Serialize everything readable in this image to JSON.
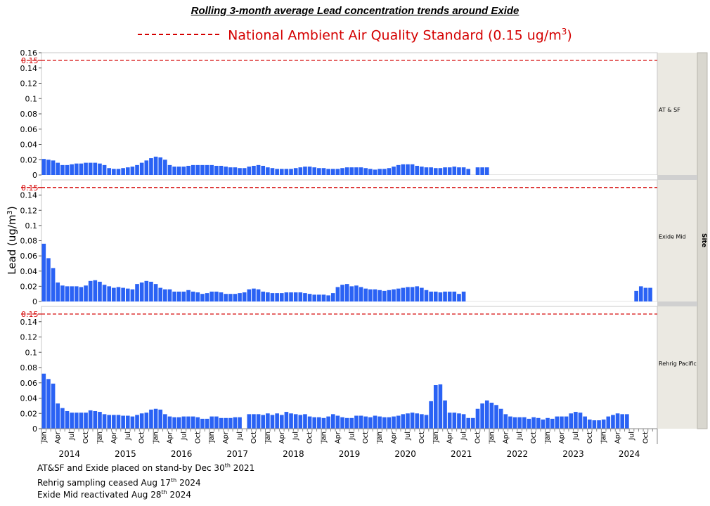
{
  "title": "Rolling 3-month average Lead concentration trends around Exide",
  "standard_legend": {
    "label": "National Ambient Air Quality Standard (0.15 ug/m",
    "sup": "3",
    "suffix": ")",
    "color": "#d40000"
  },
  "notes": [
    {
      "prefix": "AT&SF and Exide placed on stand-by Dec 30",
      "sup": "th",
      "suffix": " 2021"
    },
    {
      "prefix": "Rehrig sampling ceased Aug 17",
      "sup": "th",
      "suffix": " 2024"
    },
    {
      "prefix": "Exide Mid reactivated Aug 28",
      "sup": "th",
      "suffix": " 2024"
    }
  ],
  "chart_data": {
    "type": "bar",
    "ylabel": "Lead (ug/m3)",
    "facet_label": "Site",
    "bar_color": "#2a62f4",
    "standard_value": 0.15,
    "ylim": [
      0,
      0.16
    ],
    "yticks": [
      "0",
      "0.02",
      "0.04",
      "0.06",
      "0.08",
      "0.1",
      "0.12",
      "0.14",
      "0.16"
    ],
    "x_start": "2014-01",
    "month_tick_labels": [
      "Jan",
      "Apr",
      "Jul",
      "Oct"
    ],
    "years": [
      "2014",
      "2015",
      "2016",
      "2017",
      "2018",
      "2019",
      "2020",
      "2021",
      "2022",
      "2023",
      "2024"
    ],
    "panels": [
      {
        "site": "AT & SF",
        "values": [
          0.021,
          0.02,
          0.019,
          0.016,
          0.013,
          0.013,
          0.014,
          0.015,
          0.015,
          0.016,
          0.016,
          0.016,
          0.015,
          0.013,
          0.009,
          0.008,
          0.008,
          0.009,
          0.01,
          0.011,
          0.013,
          0.016,
          0.019,
          0.022,
          0.024,
          0.023,
          0.02,
          0.013,
          0.011,
          0.011,
          0.011,
          0.012,
          0.013,
          0.013,
          0.013,
          0.013,
          0.013,
          0.012,
          0.012,
          0.011,
          0.01,
          0.01,
          0.009,
          0.009,
          0.011,
          0.012,
          0.013,
          0.012,
          0.01,
          0.009,
          0.008,
          0.008,
          0.008,
          0.008,
          0.009,
          0.01,
          0.011,
          0.011,
          0.01,
          0.009,
          0.009,
          0.008,
          0.008,
          0.008,
          0.009,
          0.01,
          0.01,
          0.01,
          0.01,
          0.009,
          0.008,
          0.007,
          0.008,
          0.008,
          0.009,
          0.011,
          0.013,
          0.014,
          0.014,
          0.014,
          0.012,
          0.011,
          0.01,
          0.01,
          0.009,
          0.009,
          0.01,
          0.01,
          0.011,
          0.01,
          0.01,
          0.008,
          null,
          0.01,
          0.01,
          0.01
        ]
      },
      {
        "site": "Exide Mid",
        "values": [
          0.076,
          0.057,
          0.044,
          0.025,
          0.021,
          0.02,
          0.02,
          0.02,
          0.019,
          0.021,
          0.027,
          0.028,
          0.026,
          0.022,
          0.02,
          0.018,
          0.019,
          0.018,
          0.017,
          0.016,
          0.023,
          0.025,
          0.027,
          0.026,
          0.023,
          0.018,
          0.016,
          0.016,
          0.013,
          0.013,
          0.013,
          0.015,
          0.013,
          0.012,
          0.01,
          0.011,
          0.013,
          0.013,
          0.012,
          0.01,
          0.01,
          0.01,
          0.011,
          0.012,
          0.016,
          0.017,
          0.016,
          0.013,
          0.012,
          0.011,
          0.011,
          0.011,
          0.012,
          0.012,
          0.012,
          0.012,
          0.011,
          0.01,
          0.009,
          0.009,
          0.009,
          0.008,
          0.011,
          0.019,
          0.022,
          0.023,
          0.02,
          0.021,
          0.019,
          0.017,
          0.016,
          0.016,
          0.015,
          0.014,
          0.015,
          0.016,
          0.017,
          0.018,
          0.019,
          0.019,
          0.02,
          0.018,
          0.015,
          0.013,
          0.013,
          0.012,
          0.013,
          0.013,
          0.013,
          0.01,
          0.013,
          null,
          null,
          null,
          null,
          null,
          null,
          null,
          null,
          null,
          null,
          null,
          null,
          null,
          null,
          null,
          null,
          null,
          null,
          null,
          null,
          null,
          null,
          null,
          null,
          null,
          null,
          null,
          null,
          null,
          null,
          null,
          null,
          null,
          null,
          null,
          null,
          0.014,
          0.02,
          0.018,
          0.018
        ]
      },
      {
        "site": "Rehrig Pacific",
        "values": [
          0.072,
          0.065,
          0.059,
          0.033,
          0.027,
          0.023,
          0.021,
          0.021,
          0.021,
          0.021,
          0.024,
          0.023,
          0.022,
          0.019,
          0.018,
          0.018,
          0.018,
          0.017,
          0.017,
          0.016,
          0.018,
          0.02,
          0.021,
          0.025,
          0.026,
          0.025,
          0.019,
          0.016,
          0.015,
          0.015,
          0.016,
          0.016,
          0.016,
          0.015,
          0.013,
          0.013,
          0.016,
          0.016,
          0.014,
          0.014,
          0.014,
          0.015,
          0.015,
          null,
          0.019,
          0.019,
          0.019,
          0.018,
          0.02,
          0.018,
          0.02,
          0.018,
          0.022,
          0.02,
          0.019,
          0.018,
          0.019,
          0.016,
          0.015,
          0.015,
          0.014,
          0.016,
          0.019,
          0.017,
          0.015,
          0.014,
          0.014,
          0.017,
          0.017,
          0.016,
          0.015,
          0.017,
          0.016,
          0.015,
          0.015,
          0.016,
          0.017,
          0.019,
          0.02,
          0.021,
          0.02,
          0.019,
          0.018,
          0.036,
          0.057,
          0.058,
          0.037,
          0.021,
          0.021,
          0.02,
          0.019,
          0.014,
          0.014,
          0.026,
          0.033,
          0.037,
          0.034,
          0.031,
          0.026,
          0.019,
          0.016,
          0.015,
          0.015,
          0.015,
          0.013,
          0.015,
          0.014,
          0.012,
          0.014,
          0.013,
          0.016,
          0.016,
          0.016,
          0.02,
          0.022,
          0.021,
          0.016,
          0.012,
          0.011,
          0.011,
          0.012,
          0.016,
          0.018,
          0.02,
          0.019,
          0.019
        ]
      }
    ]
  }
}
